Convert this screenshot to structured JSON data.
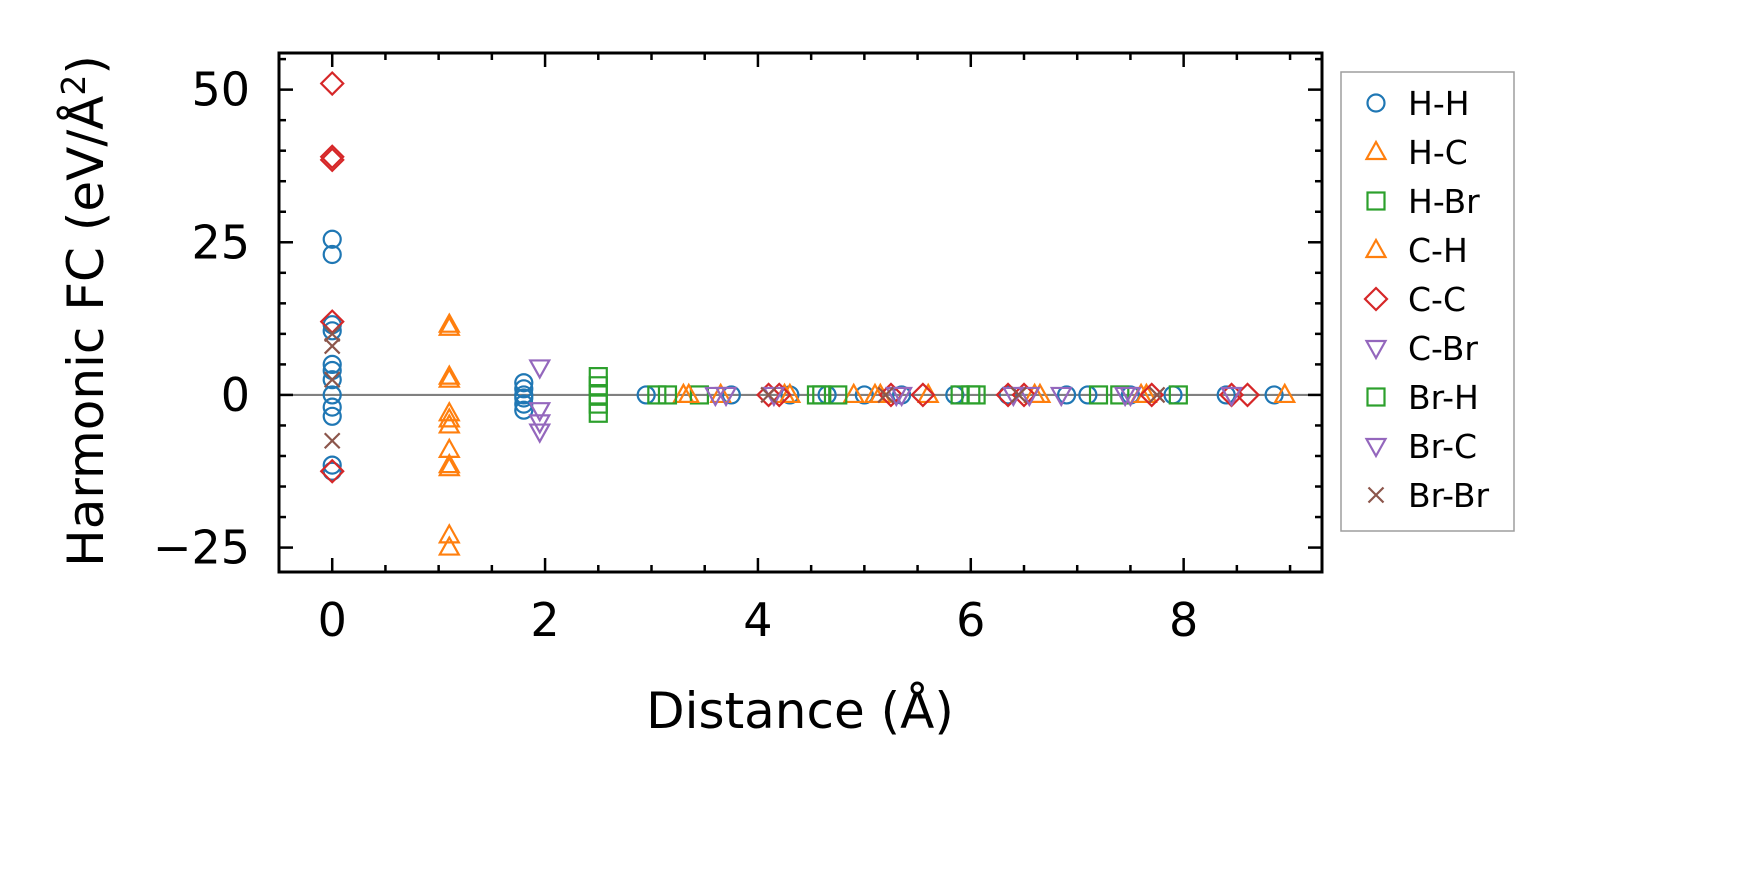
{
  "chart_data": {
    "type": "scatter",
    "xlabel": "Distance (Å)",
    "ylabel_main": "Harmonic FC (eV/Å",
    "ylabel_sup": "2",
    "ylabel_close": ")",
    "xlim": [
      -0.5,
      9.3
    ],
    "ylim": [
      -29,
      56
    ],
    "xticks": [
      0,
      2,
      4,
      6,
      8
    ],
    "yticks": [
      -25,
      0,
      25,
      50
    ],
    "xtick_labels": [
      "0",
      "2",
      "4",
      "6",
      "8"
    ],
    "ytick_labels": [
      "−25",
      "0",
      "25",
      "50"
    ],
    "zero_line": true,
    "grid": false,
    "legend_position": "outside-right",
    "series": [
      {
        "name": "H-H",
        "marker": "circle",
        "color": "#1f77b4",
        "points": [
          [
            0,
            25.5
          ],
          [
            0,
            23
          ],
          [
            0,
            11.5
          ],
          [
            0,
            10.5
          ],
          [
            0,
            5
          ],
          [
            0,
            4
          ],
          [
            0,
            2.5
          ],
          [
            0,
            0
          ],
          [
            0,
            -2
          ],
          [
            0,
            -3.5
          ],
          [
            0,
            -11.5
          ],
          [
            0,
            -12.5
          ],
          [
            1.8,
            2
          ],
          [
            1.8,
            1
          ],
          [
            1.8,
            0
          ],
          [
            1.8,
            -0.5
          ],
          [
            1.8,
            -1.5
          ],
          [
            1.8,
            -2.5
          ],
          [
            2.95,
            0
          ],
          [
            3.75,
            0
          ],
          [
            4.3,
            0
          ],
          [
            4.65,
            0
          ],
          [
            5.0,
            0
          ],
          [
            5.35,
            0
          ],
          [
            5.85,
            0
          ],
          [
            6.35,
            0
          ],
          [
            6.9,
            0
          ],
          [
            7.1,
            0
          ],
          [
            7.5,
            0
          ],
          [
            7.9,
            0
          ],
          [
            8.4,
            0
          ],
          [
            8.85,
            0
          ]
        ]
      },
      {
        "name": "H-C",
        "marker": "triangle-up",
        "color": "#ff7f0e",
        "points": [
          [
            1.1,
            11.5
          ],
          [
            1.1,
            11
          ],
          [
            1.1,
            3
          ],
          [
            1.1,
            2.5
          ],
          [
            1.1,
            -3
          ],
          [
            1.1,
            -4
          ],
          [
            1.1,
            -5
          ],
          [
            1.1,
            -9
          ],
          [
            1.1,
            -11.5
          ],
          [
            1.1,
            -12
          ],
          [
            1.1,
            -23
          ],
          [
            1.1,
            -25
          ],
          [
            3.3,
            0
          ],
          [
            3.65,
            0
          ],
          [
            4.25,
            0
          ],
          [
            4.9,
            0
          ],
          [
            5.1,
            0
          ],
          [
            5.6,
            0
          ],
          [
            6.65,
            0
          ],
          [
            7.6,
            0
          ],
          [
            8.95,
            0
          ]
        ]
      },
      {
        "name": "H-Br",
        "marker": "square",
        "color": "#2ca02c",
        "points": [
          [
            2.5,
            3
          ],
          [
            2.5,
            1.5
          ],
          [
            2.5,
            0
          ],
          [
            2.5,
            -1.5
          ],
          [
            2.5,
            -3
          ],
          [
            3.05,
            0
          ],
          [
            3.45,
            0
          ],
          [
            4.55,
            0
          ],
          [
            4.75,
            0
          ],
          [
            5.9,
            0
          ],
          [
            6.05,
            0
          ],
          [
            7.2,
            0
          ],
          [
            7.4,
            0
          ]
        ]
      },
      {
        "name": "C-H",
        "marker": "triangle-up",
        "color": "#ff7f0e",
        "points": [
          [
            3.35,
            0
          ],
          [
            4.3,
            0
          ],
          [
            5.15,
            0
          ],
          [
            6.6,
            0
          ],
          [
            7.65,
            0
          ]
        ]
      },
      {
        "name": "C-C",
        "marker": "diamond",
        "color": "#d62728",
        "points": [
          [
            0,
            51
          ],
          [
            0,
            39
          ],
          [
            0,
            38.5
          ],
          [
            0,
            12
          ],
          [
            0,
            -12.5
          ],
          [
            4.1,
            0
          ],
          [
            4.2,
            0
          ],
          [
            5.25,
            0
          ],
          [
            5.55,
            0
          ],
          [
            6.35,
            0
          ],
          [
            6.5,
            0
          ],
          [
            7.7,
            0
          ],
          [
            8.45,
            0
          ],
          [
            8.6,
            0
          ]
        ]
      },
      {
        "name": "C-Br",
        "marker": "triangle-down",
        "color": "#9467bd",
        "points": [
          [
            1.95,
            4.5
          ],
          [
            1.95,
            -2.5
          ],
          [
            1.95,
            -4.5
          ],
          [
            1.95,
            -6
          ],
          [
            3.6,
            0
          ],
          [
            4.15,
            0
          ],
          [
            5.35,
            0
          ],
          [
            6.4,
            0
          ],
          [
            6.85,
            0
          ],
          [
            7.5,
            0
          ]
        ]
      },
      {
        "name": "Br-H",
        "marker": "square",
        "color": "#2ca02c",
        "points": [
          [
            3.15,
            0
          ],
          [
            4.6,
            0
          ],
          [
            6.0,
            0
          ],
          [
            7.95,
            0
          ]
        ]
      },
      {
        "name": "Br-C",
        "marker": "triangle-down",
        "color": "#9467bd",
        "points": [
          [
            3.7,
            0
          ],
          [
            5.3,
            0
          ],
          [
            6.55,
            0
          ],
          [
            7.45,
            0
          ],
          [
            8.45,
            0
          ]
        ]
      },
      {
        "name": "Br-Br",
        "marker": "x",
        "color": "#8c564b",
        "points": [
          [
            0,
            10
          ],
          [
            0,
            8
          ],
          [
            0,
            2.5
          ],
          [
            0,
            -7.5
          ],
          [
            4.1,
            0
          ],
          [
            5.2,
            0
          ],
          [
            6.45,
            0
          ],
          [
            7.75,
            0
          ]
        ]
      }
    ]
  }
}
